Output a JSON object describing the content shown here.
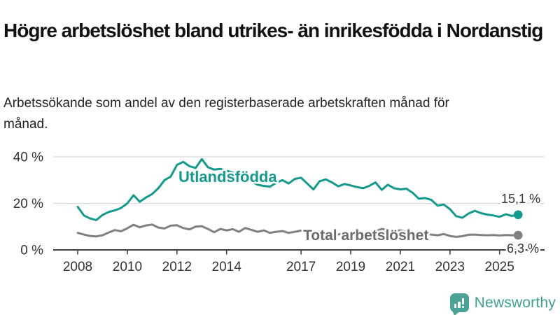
{
  "title": "Högre arbetslöshet bland utrikes- än inrikesfödda i Nordanstig",
  "subtitle": "Arbetssökande som andel av den registerbaserade arbetskraften månad för månad.",
  "branding": {
    "logo_text": "Newsworthy",
    "logo_icon": "bar-chart-speech-bubble-icon",
    "logo_color": "#3fa294"
  },
  "chart_data": {
    "type": "line",
    "title": "",
    "xlabel": "",
    "ylabel": "",
    "grid": true,
    "x_start": 2008.0,
    "x_step": 0.25,
    "xlim": [
      2007.0,
      2026.8
    ],
    "ylim": [
      0,
      44
    ],
    "x_ticks": [
      2008,
      2010,
      2012,
      2014,
      2017,
      2019,
      2021,
      2023,
      2025
    ],
    "y_ticks": [
      {
        "value": 0,
        "label": "0 %"
      },
      {
        "value": 20,
        "label": "20 %"
      },
      {
        "value": 40,
        "label": "40 %"
      }
    ],
    "colors": {
      "gridline": "#d9d9d9",
      "axis": "#404040",
      "tick_text": "#333333"
    },
    "series": [
      {
        "name": "Utlandsfödda",
        "color": "#149a8c",
        "label_color": "#149a8c",
        "end_label": "15,1 %",
        "values": [
          18.5,
          14.8,
          13.5,
          12.8,
          15.0,
          16.3,
          17.0,
          18.0,
          20.0,
          23.5,
          20.7,
          22.5,
          24.0,
          26.5,
          30.0,
          31.5,
          36.5,
          37.8,
          36.0,
          35.2,
          39.0,
          35.5,
          34.5,
          34.8,
          34.0,
          33.2,
          32.0,
          30.5,
          29.5,
          28.0,
          27.5,
          27.2,
          28.8,
          30.0,
          28.5,
          30.5,
          31.0,
          28.5,
          26.0,
          29.5,
          30.3,
          29.0,
          27.3,
          28.3,
          27.7,
          27.0,
          26.5,
          27.5,
          29.0,
          25.8,
          28.0,
          26.5,
          26.0,
          26.3,
          24.5,
          22.0,
          22.3,
          21.5,
          19.0,
          19.5,
          17.5,
          14.5,
          13.8,
          15.6,
          16.8,
          15.8,
          15.2,
          14.8,
          14.2,
          15.3,
          14.6,
          15.1
        ]
      },
      {
        "name": "Total arbetslöshet",
        "color": "#808080",
        "label_color": "#6b6b6b",
        "end_label": "6,3 %",
        "values": [
          7.3,
          6.6,
          6.0,
          5.8,
          6.3,
          7.5,
          8.5,
          8.0,
          9.3,
          10.8,
          9.7,
          10.5,
          10.9,
          9.6,
          9.2,
          10.4,
          10.6,
          9.4,
          8.8,
          10.0,
          10.2,
          9.0,
          7.6,
          9.0,
          8.4,
          8.9,
          7.8,
          9.4,
          8.6,
          7.8,
          8.4,
          7.3,
          7.8,
          8.1,
          7.3,
          7.8,
          8.3,
          7.6,
          7.1,
          7.9,
          7.6,
          6.9,
          6.6,
          7.3,
          7.1,
          6.6,
          6.8,
          7.4,
          8.0,
          9.0,
          8.6,
          8.3,
          8.4,
          7.8,
          7.2,
          7.6,
          7.0,
          6.6,
          6.3,
          6.8,
          6.0,
          5.6,
          5.9,
          6.5,
          6.6,
          6.4,
          6.3,
          6.4,
          6.2,
          6.4,
          6.3,
          6.3
        ]
      }
    ]
  }
}
